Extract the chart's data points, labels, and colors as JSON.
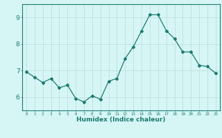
{
  "x": [
    0,
    1,
    2,
    3,
    4,
    5,
    6,
    7,
    8,
    9,
    10,
    11,
    12,
    13,
    14,
    15,
    16,
    17,
    18,
    19,
    20,
    21,
    22,
    23
  ],
  "y": [
    6.95,
    6.75,
    6.55,
    6.7,
    6.35,
    6.45,
    5.95,
    5.82,
    6.05,
    5.92,
    6.6,
    6.7,
    7.45,
    7.9,
    8.5,
    9.1,
    9.1,
    8.5,
    8.2,
    7.7,
    7.7,
    7.2,
    7.15,
    6.9
  ],
  "title": "",
  "xlabel": "Humidex (Indice chaleur)",
  "ylabel": "",
  "line_color": "#1a7a6e",
  "bg_color": "#d6f5f5",
  "grid_color": "#c0dede",
  "ylim": [
    5.5,
    9.5
  ],
  "xlim": [
    -0.5,
    23.5
  ]
}
